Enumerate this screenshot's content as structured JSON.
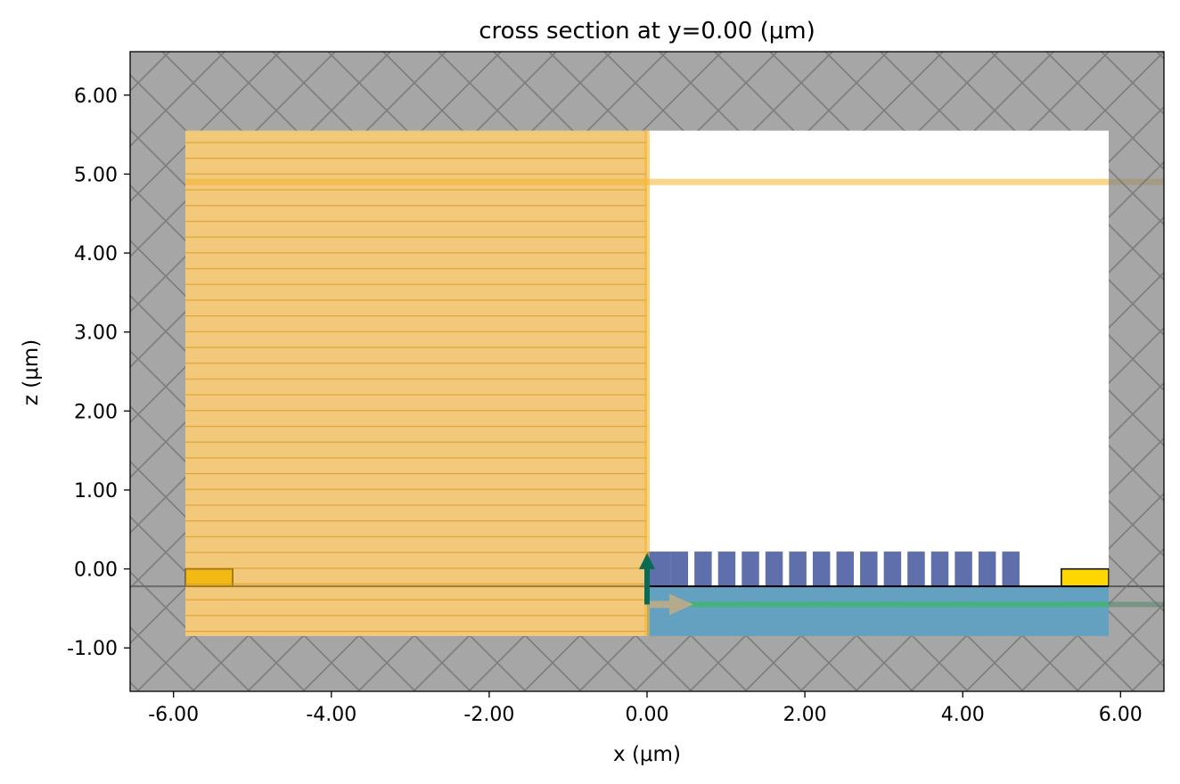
{
  "chart_data": {
    "type": "cross-section",
    "title": "cross section at y=0.00 (μm)",
    "xlabel": "x (μm)",
    "ylabel": "z (μm)",
    "xlim": [
      -6.55,
      6.55
    ],
    "ylim": [
      -1.55,
      6.55
    ],
    "x_ticks": [
      -6,
      -4,
      -2,
      0,
      2,
      4,
      6
    ],
    "x_tick_labels": [
      "-6.00",
      "-4.00",
      "-2.00",
      "0.00",
      "2.00",
      "4.00",
      "6.00"
    ],
    "y_ticks": [
      -1,
      0,
      1,
      2,
      3,
      4,
      5,
      6
    ],
    "y_tick_labels": [
      "-1.00",
      "0.00",
      "1.00",
      "2.00",
      "3.00",
      "4.00",
      "5.00",
      "6.00"
    ],
    "grid": false,
    "colors": {
      "substrate": "#64a0bf",
      "grating": "#5f6fac",
      "metal": "#ffd700",
      "field_region": "#e9a322",
      "pml": "#808080",
      "monitor_line": "#f5b52e",
      "mode_line": "#3fb56b",
      "source_arrow": "#0a6b54",
      "direction_arrow": "#b4aa8c"
    },
    "structures": {
      "substrate": {
        "x": [
          0.0,
          5.85
        ],
        "z": [
          -0.85,
          -0.22
        ]
      },
      "grating": {
        "z": [
          -0.22,
          0.22
        ],
        "x_start": 0.0,
        "teeth": 16,
        "tooth_width": 0.22,
        "period": 0.3,
        "first_tooth_width": 0.3
      },
      "metal_pad_left": {
        "x": [
          -5.85,
          -5.25
        ],
        "z": [
          -0.22,
          0.0
        ]
      },
      "metal_pad_right": {
        "x": [
          5.25,
          5.85
        ],
        "z": [
          -0.22,
          0.0
        ]
      }
    },
    "regions": {
      "field_region": {
        "x": [
          -5.85,
          0.0
        ],
        "z": [
          -0.85,
          5.55
        ]
      },
      "pml_left": {
        "x": [
          -6.55,
          -5.85
        ]
      },
      "pml_right": {
        "x": [
          5.85,
          6.55
        ]
      },
      "pml_top": {
        "z": [
          5.55,
          6.55
        ]
      },
      "pml_bottom": {
        "z": [
          -1.55,
          -0.85
        ]
      }
    },
    "lines": {
      "monitor_z": 4.9,
      "mode_z": -0.45,
      "source_x": 0.0,
      "interface_z": -0.22
    }
  }
}
